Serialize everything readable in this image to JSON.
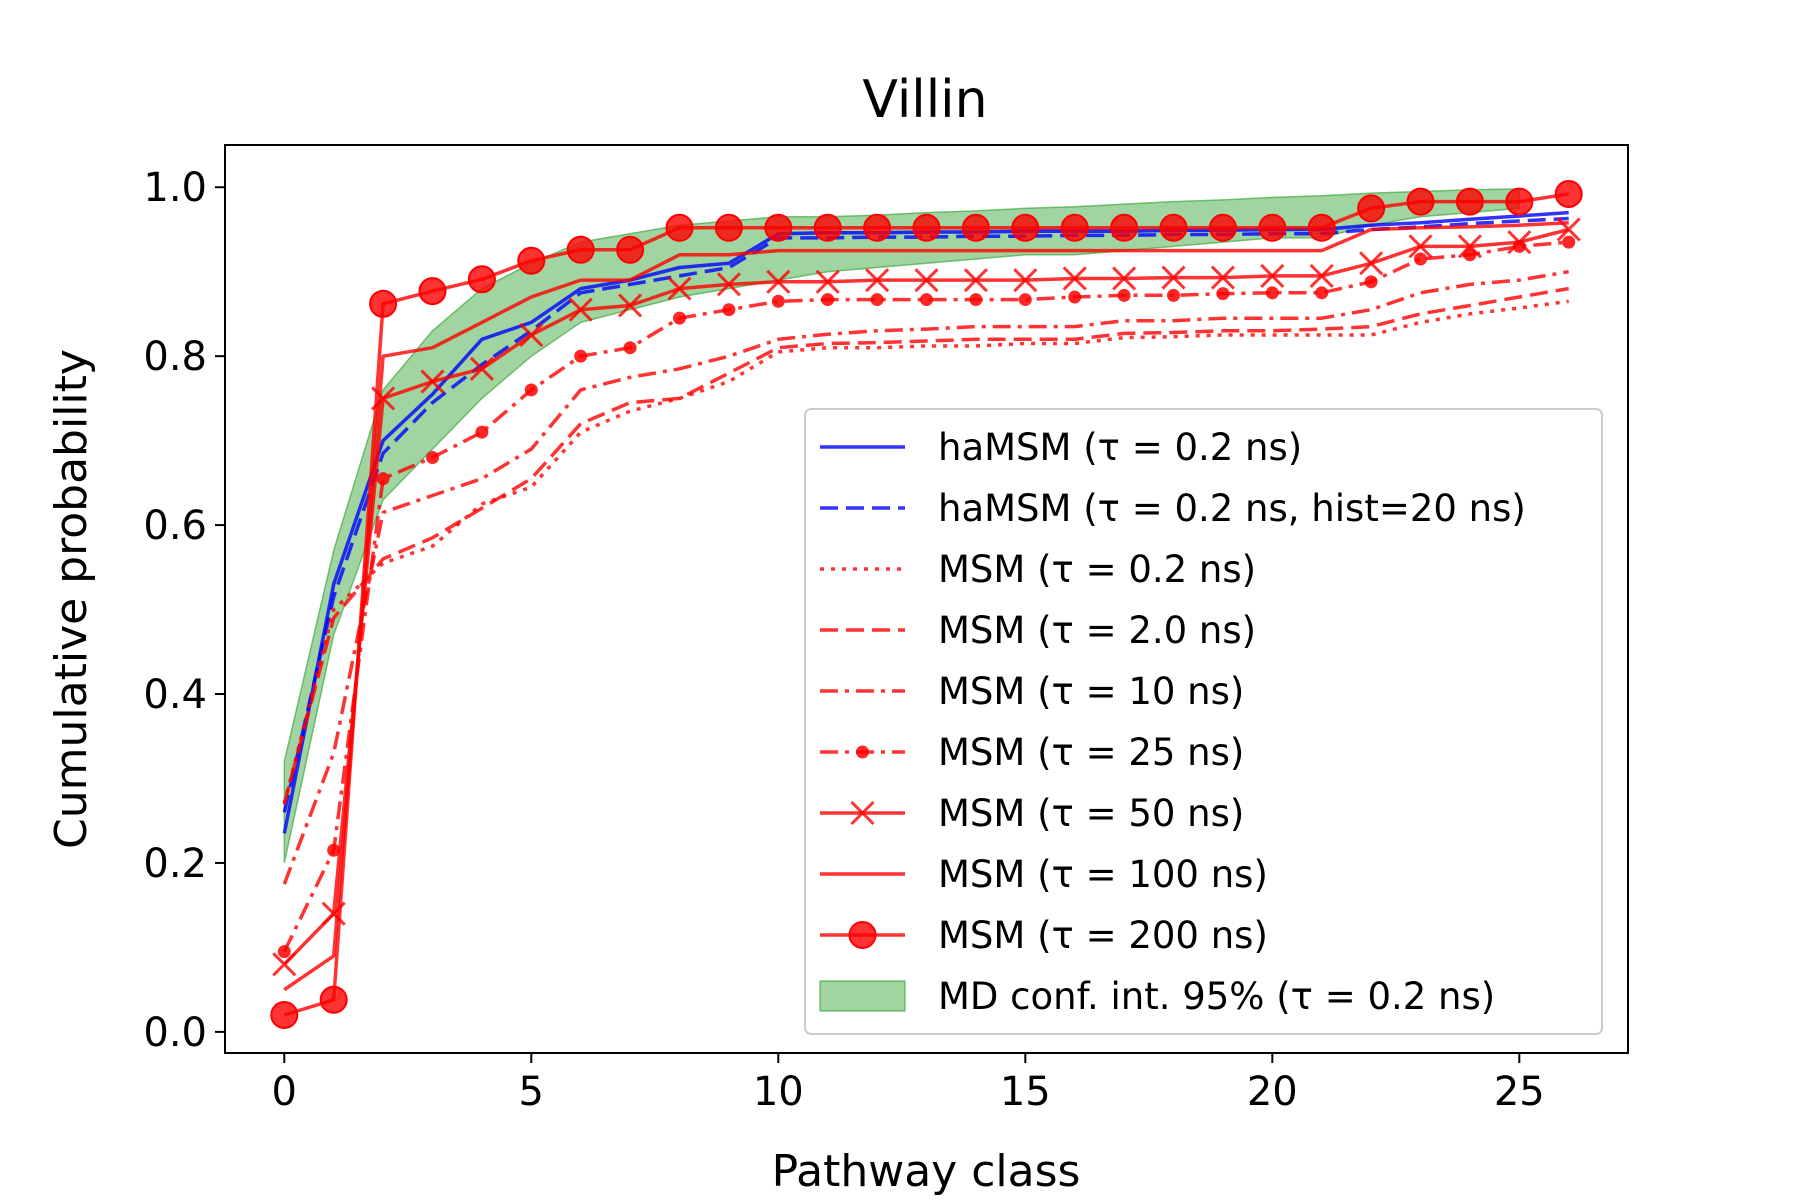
{
  "chart_data": {
    "type": "line",
    "title": "Villin",
    "xlabel": "Pathway class",
    "ylabel": "Cumulative probability",
    "xlim": [
      -1.2,
      27.2
    ],
    "ylim": [
      -0.025,
      1.05
    ],
    "xticks": [
      0,
      5,
      10,
      15,
      20,
      25
    ],
    "yticks": [
      0.0,
      0.2,
      0.4,
      0.6,
      0.8,
      1.0
    ],
    "xtick_labels": [
      "0",
      "5",
      "10",
      "15",
      "20",
      "25"
    ],
    "ytick_labels": [
      "0.0",
      "0.2",
      "0.4",
      "0.6",
      "0.8",
      "1.0"
    ],
    "grid": false,
    "legend_position": "center-right",
    "x": [
      0,
      1,
      2,
      3,
      4,
      5,
      6,
      7,
      8,
      9,
      10,
      11,
      12,
      13,
      14,
      15,
      16,
      17,
      18,
      19,
      20,
      21,
      22,
      23,
      24,
      25,
      26
    ],
    "band": {
      "name": "MD conf. int. 95% (τ = 0.2 ns)",
      "color": "#2ca02c",
      "x": [
        0,
        1,
        2,
        3,
        4,
        5,
        6,
        7,
        8,
        9,
        10,
        11,
        12,
        13,
        14,
        15,
        16,
        17,
        18,
        19,
        20,
        21,
        22,
        23,
        24,
        25
      ],
      "lower": [
        0.2,
        0.47,
        0.63,
        0.69,
        0.75,
        0.8,
        0.84,
        0.855,
        0.87,
        0.88,
        0.89,
        0.9,
        0.905,
        0.91,
        0.915,
        0.92,
        0.92,
        0.925,
        0.93,
        0.935,
        0.94,
        0.94,
        0.955,
        0.965,
        0.97,
        0.975
      ],
      "upper": [
        0.32,
        0.57,
        0.76,
        0.83,
        0.88,
        0.91,
        0.935,
        0.945,
        0.955,
        0.96,
        0.965,
        0.965,
        0.967,
        0.97,
        0.972,
        0.975,
        0.977,
        0.98,
        0.983,
        0.985,
        0.988,
        0.99,
        0.993,
        0.995,
        0.997,
        0.998
      ]
    },
    "series": [
      {
        "name": "haMSM (τ = 0.2 ns)",
        "color": "#0000ff",
        "dash": "solid",
        "marker": "none",
        "values": [
          0.235,
          0.53,
          0.7,
          0.755,
          0.82,
          0.84,
          0.88,
          0.89,
          0.905,
          0.91,
          0.945,
          0.946,
          0.946,
          0.947,
          0.947,
          0.948,
          0.948,
          0.948,
          0.949,
          0.949,
          0.95,
          0.95,
          0.955,
          0.958,
          0.962,
          0.966,
          0.97
        ]
      },
      {
        "name": "haMSM (τ = 0.2 ns, hist=20 ns)",
        "color": "#0000ff",
        "dash": "dashed",
        "marker": "none",
        "values": [
          0.26,
          0.515,
          0.685,
          0.745,
          0.79,
          0.83,
          0.875,
          0.885,
          0.895,
          0.905,
          0.94,
          0.94,
          0.941,
          0.941,
          0.942,
          0.942,
          0.943,
          0.943,
          0.944,
          0.944,
          0.945,
          0.945,
          0.95,
          0.953,
          0.957,
          0.96,
          0.963
        ]
      },
      {
        "name": "MSM (τ = 0.2 ns)",
        "color": "#ff0000",
        "dash": "dotted",
        "marker": "none",
        "values": [
          0.27,
          0.5,
          0.555,
          0.575,
          0.625,
          0.645,
          0.71,
          0.735,
          0.75,
          0.77,
          0.805,
          0.81,
          0.81,
          0.812,
          0.812,
          0.815,
          0.815,
          0.822,
          0.823,
          0.825,
          0.825,
          0.825,
          0.825,
          0.84,
          0.85,
          0.857,
          0.865
        ]
      },
      {
        "name": "MSM (τ = 2.0 ns)",
        "color": "#ff0000",
        "dash": "dashed",
        "marker": "none",
        "values": [
          0.27,
          0.49,
          0.56,
          0.585,
          0.62,
          0.655,
          0.72,
          0.745,
          0.75,
          0.78,
          0.81,
          0.815,
          0.816,
          0.818,
          0.82,
          0.82,
          0.82,
          0.827,
          0.828,
          0.83,
          0.83,
          0.832,
          0.835,
          0.85,
          0.86,
          0.87,
          0.88
        ]
      },
      {
        "name": "MSM (τ = 10 ns)",
        "color": "#ff0000",
        "dash": "dashdot",
        "marker": "none",
        "values": [
          0.175,
          0.33,
          0.615,
          0.635,
          0.655,
          0.69,
          0.76,
          0.775,
          0.785,
          0.8,
          0.82,
          0.826,
          0.83,
          0.832,
          0.835,
          0.835,
          0.835,
          0.842,
          0.842,
          0.845,
          0.845,
          0.845,
          0.855,
          0.875,
          0.885,
          0.89,
          0.9
        ]
      },
      {
        "name": "MSM (τ = 25 ns)",
        "color": "#ff0000",
        "dash": "dashdot",
        "marker": "dot",
        "values": [
          0.095,
          0.215,
          0.655,
          0.68,
          0.71,
          0.76,
          0.8,
          0.81,
          0.845,
          0.855,
          0.865,
          0.867,
          0.867,
          0.867,
          0.867,
          0.867,
          0.87,
          0.872,
          0.872,
          0.874,
          0.875,
          0.875,
          0.888,
          0.915,
          0.92,
          0.93,
          0.935
        ]
      },
      {
        "name": "MSM (τ = 50 ns)",
        "color": "#ff0000",
        "dash": "solid",
        "marker": "x",
        "values": [
          0.08,
          0.14,
          0.75,
          0.77,
          0.785,
          0.825,
          0.855,
          0.86,
          0.88,
          0.885,
          0.888,
          0.888,
          0.89,
          0.89,
          0.89,
          0.89,
          0.892,
          0.892,
          0.893,
          0.893,
          0.895,
          0.895,
          0.91,
          0.93,
          0.93,
          0.935,
          0.95
        ]
      },
      {
        "name": "MSM (τ = 100 ns)",
        "color": "#ff0000",
        "dash": "solid",
        "marker": "none",
        "values": [
          0.05,
          0.09,
          0.8,
          0.81,
          0.84,
          0.87,
          0.89,
          0.89,
          0.92,
          0.92,
          0.925,
          0.925,
          0.925,
          0.925,
          0.925,
          0.925,
          0.925,
          0.925,
          0.925,
          0.925,
          0.925,
          0.925,
          0.95,
          0.952,
          0.953,
          0.955,
          0.958
        ]
      },
      {
        "name": "MSM (τ = 200 ns)",
        "color": "#ff0000",
        "dash": "solid",
        "marker": "circle",
        "values": [
          0.02,
          0.038,
          0.862,
          0.877,
          0.891,
          0.913,
          0.926,
          0.926,
          0.952,
          0.952,
          0.952,
          0.952,
          0.952,
          0.952,
          0.952,
          0.952,
          0.952,
          0.952,
          0.952,
          0.952,
          0.952,
          0.952,
          0.975,
          0.983,
          0.983,
          0.983,
          0.992
        ]
      }
    ]
  }
}
